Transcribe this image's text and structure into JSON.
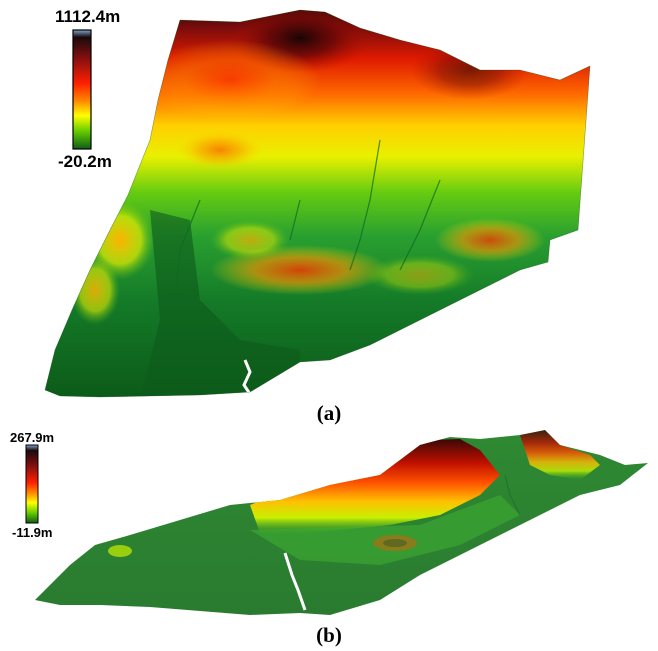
{
  "panels": [
    {
      "caption": "(a)",
      "scale": {
        "max_label": "1112.4m",
        "min_label": "-20.2m"
      }
    },
    {
      "caption": "(b)",
      "scale": {
        "max_label": "267.9m",
        "min_label": "-11.9m"
      }
    }
  ],
  "colormap": {
    "stops": [
      "#7fa8d4",
      "#1a0a0a",
      "#8b1010",
      "#ff2000",
      "#ff8c00",
      "#ffff00",
      "#66cc00",
      "#1a8c2a",
      "#0f5c1a"
    ]
  }
}
